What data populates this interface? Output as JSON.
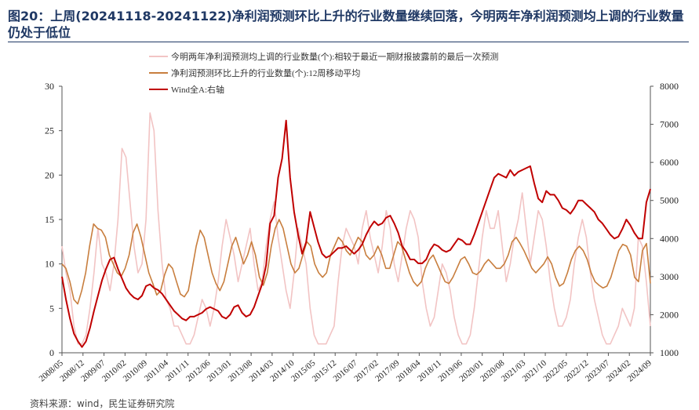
{
  "title": "图20：上周(20241118-20241122)净利润预测环比上升的行业数量继续回落，今明两年净利润预测均上调的行业数量仍处于低位",
  "source": "资料来源：wind，民生证券研究院",
  "chart_data": {
    "type": "line",
    "x_tick_labels": [
      "2008/05",
      "2008/12",
      "2009/07",
      "2010/02",
      "2010/09",
      "2011/04",
      "2011/11",
      "2012/06",
      "2013/01",
      "2013/08",
      "2014/03",
      "2014/10",
      "2015/05",
      "2015/12",
      "2016/07",
      "2017/02",
      "2017/09",
      "2018/04",
      "2018/11",
      "2019/06",
      "2020/01",
      "2020/08",
      "2021/03",
      "2021/10",
      "2022/05",
      "2022/12",
      "2023/07",
      "2024/02",
      "2024/09"
    ],
    "left_axis": {
      "min": 0,
      "max": 30,
      "ticks": [
        0,
        5,
        10,
        15,
        20,
        25,
        30
      ]
    },
    "right_axis": {
      "min": 1000,
      "max": 8000,
      "ticks": [
        1000,
        2000,
        3000,
        4000,
        5000,
        6000,
        7000,
        8000
      ]
    },
    "legend_position": "top",
    "series": [
      {
        "name": "今明两年净利润预测均上调的行业数量(个):相较于最近一期财报披露前的最后一次预测",
        "axis": "left",
        "color": "#f2c4c4",
        "values": [
          12,
          9,
          7,
          3,
          1,
          1,
          2,
          5,
          9,
          14,
          10,
          9,
          7,
          10,
          15,
          23,
          22,
          17,
          12,
          9,
          10,
          15,
          27,
          25,
          16,
          10,
          6,
          5,
          3,
          3,
          2,
          1,
          1,
          2,
          4,
          6,
          5,
          3,
          5,
          8,
          12,
          15,
          13,
          11,
          8,
          10,
          12,
          14,
          10,
          7,
          8,
          12,
          15,
          17,
          13,
          10,
          7,
          5,
          9,
          14,
          12,
          10,
          5,
          2,
          1,
          1,
          1,
          2,
          3,
          8,
          12,
          14,
          13,
          12,
          10,
          14,
          16,
          13,
          11,
          9,
          12,
          16,
          14,
          10,
          8,
          11,
          14,
          16,
          15,
          13,
          8,
          5,
          3,
          4,
          7,
          10,
          9,
          7,
          4,
          2,
          1,
          1,
          2,
          5,
          9,
          13,
          16,
          14,
          14,
          16,
          12,
          8,
          10,
          13,
          15,
          18,
          14,
          10,
          13,
          16,
          15,
          12,
          8,
          5,
          3,
          3,
          4,
          6,
          10,
          13,
          15,
          13,
          9,
          6,
          4,
          2,
          1,
          1,
          2,
          3,
          5,
          4,
          3,
          5,
          13,
          12,
          8,
          3
        ]
      },
      {
        "name": "净利润预测环比上升的行业数量(个):12周移动平均",
        "axis": "left",
        "color": "#c87e3e",
        "values": [
          10,
          9.5,
          8,
          6,
          5.5,
          7,
          9,
          12,
          14.5,
          14,
          13.8,
          13,
          11,
          10,
          9,
          8.6,
          9.5,
          11,
          13.5,
          14.5,
          13,
          11,
          9,
          7.8,
          6.5,
          7,
          8.8,
          10,
          9.5,
          8,
          6.6,
          6.3,
          7,
          9.5,
          12,
          13.8,
          13,
          11,
          9,
          7.8,
          7,
          8,
          10,
          12,
          13,
          11.5,
          10,
          11,
          12.5,
          11,
          8.5,
          7.6,
          9,
          12,
          14,
          15,
          14,
          12,
          10,
          9,
          9.5,
          11,
          12.5,
          12,
          10,
          9,
          8.5,
          9,
          11,
          12,
          13,
          12.5,
          11.5,
          11,
          12,
          13,
          12.5,
          11,
          10.5,
          11,
          12,
          11,
          9.5,
          9.5,
          11,
          12.5,
          12,
          10.5,
          9,
          8,
          7.5,
          8,
          9.5,
          10.5,
          11,
          10,
          9,
          8,
          7.8,
          8.5,
          9.5,
          10.5,
          10.8,
          10,
          9,
          8.8,
          9.2,
          10,
          10.5,
          10,
          9.5,
          9.5,
          10,
          11,
          12.5,
          13,
          12.3,
          11.5,
          10.5,
          9.5,
          9,
          9.5,
          10,
          10.8,
          10,
          8.5,
          7.5,
          7.8,
          9,
          10.5,
          11.5,
          12,
          11.5,
          10.5,
          9,
          8,
          7.6,
          7.3,
          7.5,
          8.5,
          10,
          11.5,
          12.2,
          12,
          11,
          8.5,
          8,
          11.5,
          12.3,
          7.8
        ]
      },
      {
        "name": "Wind全A:右轴",
        "axis": "right",
        "color": "#c00000",
        "values": [
          3000,
          2400,
          1900,
          1500,
          1300,
          1150,
          1300,
          1650,
          2100,
          2500,
          2900,
          3200,
          3450,
          3500,
          3200,
          2950,
          2700,
          2550,
          2450,
          2400,
          2500,
          2750,
          2800,
          2700,
          2650,
          2550,
          2400,
          2250,
          2100,
          2000,
          1900,
          1850,
          1950,
          1950,
          2000,
          2050,
          2150,
          2200,
          2150,
          2100,
          1950,
          1900,
          2000,
          2200,
          2250,
          2050,
          1950,
          2000,
          2200,
          2500,
          2800,
          3300,
          4400,
          4600,
          5600,
          6100,
          7100,
          5600,
          4700,
          4100,
          3600,
          3900,
          4700,
          4300,
          3900,
          3600,
          3500,
          3550,
          3650,
          3750,
          3750,
          3800,
          3700,
          3600,
          3700,
          3850,
          4100,
          4300,
          4450,
          4350,
          4400,
          4550,
          4600,
          4400,
          4150,
          3800,
          3650,
          3450,
          3450,
          3350,
          3350,
          3450,
          3700,
          3850,
          3800,
          3700,
          3650,
          3700,
          3850,
          4000,
          3950,
          3850,
          3850,
          4100,
          4400,
          4700,
          5000,
          5300,
          5600,
          5700,
          5650,
          5600,
          5800,
          5650,
          5750,
          5800,
          5850,
          5900,
          5450,
          5050,
          4950,
          5250,
          5150,
          5150,
          5000,
          4800,
          4750,
          4650,
          4800,
          5000,
          5000,
          4900,
          4800,
          4700,
          4500,
          4400,
          4250,
          4100,
          4000,
          4050,
          4250,
          4500,
          4350,
          4150,
          4000,
          4000,
          4950,
          5300
        ]
      }
    ]
  }
}
